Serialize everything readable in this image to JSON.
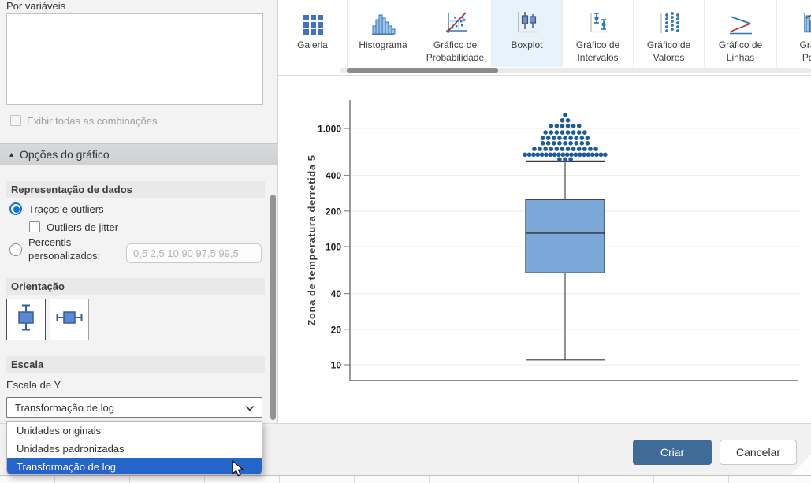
{
  "panel": {
    "by_variables_label": "Por variáveis",
    "by_variables_value": "",
    "show_all_combinations_label": "Exibir todas as combinações",
    "show_all_combinations_checked": false,
    "chart_options_header": "Opções do gráfico",
    "data_representation": {
      "header": "Representação de dados",
      "radio_whiskers_label": "Traços e outliers",
      "radio_whiskers_selected": true,
      "checkbox_jitter_label": "Outliers de jitter",
      "checkbox_jitter_checked": false,
      "radio_percentiles_line1": "Percentis",
      "radio_percentiles_line2": "personalizados:",
      "radio_percentiles_selected": false,
      "percentiles_placeholder": "0,5 2,5 10 90 97,5 99,5",
      "percentiles_value": ""
    },
    "orientation": {
      "header": "Orientação",
      "options": [
        {
          "name": "vertical",
          "icon": "vertical-boxplot-icon",
          "selected": true
        },
        {
          "name": "horizontal",
          "icon": "horizontal-boxplot-icon",
          "selected": false
        }
      ]
    },
    "scale": {
      "header": "Escala",
      "y_scale_label": "Escala de Y",
      "dropdown_value": "Transformação de log"
    }
  },
  "dropdown": {
    "options": [
      "Unidades originais",
      "Unidades padronizadas",
      "Transformação de log"
    ],
    "highlighted_index": 2
  },
  "toolbar": {
    "tabs": [
      {
        "id": "galeria",
        "label_lines": [
          "Galeria"
        ],
        "icon": "gallery-icon",
        "selected": false
      },
      {
        "id": "histograma",
        "label_lines": [
          "Histograma"
        ],
        "icon": "histogram-icon",
        "selected": false
      },
      {
        "id": "grafico-de-probabilidade",
        "label_lines": [
          "Gráfico de",
          "Probabilidade"
        ],
        "icon": "probability-plot-icon",
        "selected": false
      },
      {
        "id": "boxplot",
        "label_lines": [
          "Boxplot"
        ],
        "icon": "boxplot-icon",
        "selected": true
      },
      {
        "id": "grafico-de-intervalos",
        "label_lines": [
          "Gráfico de",
          "Intervalos"
        ],
        "icon": "interval-plot-icon",
        "selected": false
      },
      {
        "id": "grafico-de-valores",
        "label_lines": [
          "Gráfico de",
          "Valores"
        ],
        "icon": "individual-value-plot-icon",
        "selected": false
      },
      {
        "id": "grafico-de-linhas",
        "label_lines": [
          "Gráfico de",
          "Linhas"
        ],
        "icon": "line-plot-icon",
        "selected": false
      },
      {
        "id": "grafico-de-pareto",
        "label_lines": [
          "Gráfic",
          "Pare"
        ],
        "icon": "pareto-icon",
        "selected": false
      }
    ]
  },
  "footer": {
    "create_label": "Criar",
    "cancel_label": "Cancelar"
  },
  "chart_data": {
    "type": "boxplot",
    "title": "",
    "xlabel": "",
    "ylabel": "Zona de temperatura derretida 5",
    "y_scale": "log",
    "ylim": [
      7.5,
      1750
    ],
    "grid": true,
    "y_ticks": [
      10,
      20,
      40,
      100,
      200,
      400,
      1000
    ],
    "y_tick_labels": [
      "10",
      "20",
      "40",
      "100",
      "200",
      "400",
      "1.000"
    ],
    "box": {
      "q1": 60,
      "median": 130,
      "q3": 250,
      "whisker_low": 11,
      "whisker_high": 530
    },
    "outlier_rows": [
      {
        "value": 1300,
        "count": 1
      },
      {
        "value": 1170,
        "count": 2
      },
      {
        "value": 1050,
        "count": 6
      },
      {
        "value": 925,
        "count": 8
      },
      {
        "value": 830,
        "count": 9
      },
      {
        "value": 750,
        "count": 9
      },
      {
        "value": 670,
        "count": 12
      },
      {
        "value": 600,
        "count": 20
      },
      {
        "value": 548,
        "count": 3
      }
    ],
    "n_outlier_points": 70
  },
  "colors": {
    "accent_blue": "#2e75b6",
    "selection_blue": "#2564c8",
    "tab_selected_bg": "#e7f2fb",
    "create_button": "#3e6b98",
    "box_fill": "#7ba7d9",
    "box_stroke": "#3f4a56",
    "dot_blue": "#1d5b9e",
    "radio_blue": "#1273d4"
  }
}
